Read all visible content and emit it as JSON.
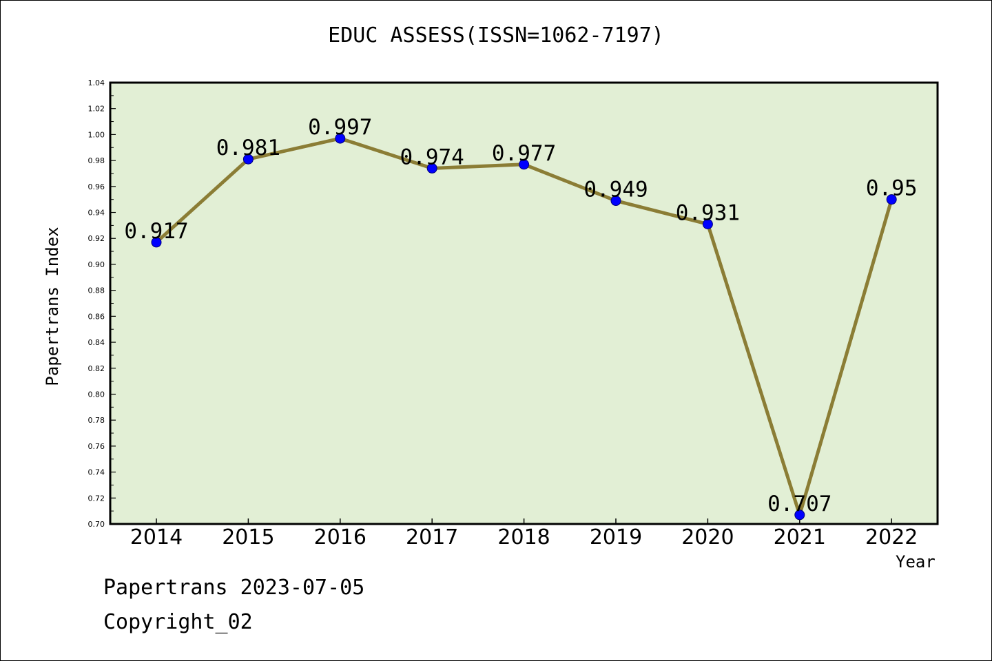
{
  "chart_data": {
    "type": "line",
    "title": "EDUC ASSESS(ISSN=1062-7197)",
    "xlabel": "Year",
    "ylabel": "Papertrans Index",
    "categories": [
      "2014",
      "2015",
      "2016",
      "2017",
      "2018",
      "2019",
      "2020",
      "2021",
      "2022"
    ],
    "series": [
      {
        "values": [
          0.917,
          0.981,
          0.997,
          0.974,
          0.977,
          0.949,
          0.931,
          0.707,
          0.95
        ],
        "labels": [
          "0.917",
          "0.981",
          "0.997",
          "0.974",
          "0.977",
          "0.949",
          "0.931",
          "0.707",
          "0.95"
        ]
      }
    ],
    "ylim": [
      0.7,
      1.04
    ],
    "yticks": [
      "0.70",
      "0.72",
      "0.74",
      "0.76",
      "0.78",
      "0.80",
      "0.82",
      "0.84",
      "0.86",
      "0.88",
      "0.90",
      "0.92",
      "0.94",
      "0.96",
      "0.98",
      "1.00",
      "1.02",
      "1.04"
    ],
    "grid": false,
    "colors": {
      "plot_background": "#e2efd5",
      "line": "#8b7d35",
      "marker": "#0000ff"
    }
  },
  "footer": {
    "date_line": "Papertrans 2023-07-05",
    "copyright": "Copyright_02"
  }
}
